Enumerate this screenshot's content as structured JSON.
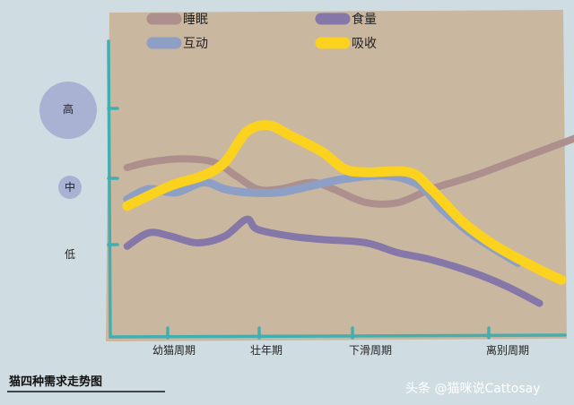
{
  "chart_data": {
    "type": "line",
    "title": "猫四种需求走势图",
    "categories": [
      "幼猫周期",
      "壮年期",
      "下滑周期",
      "离别周期"
    ],
    "y_levels": [
      "低",
      "中",
      "高"
    ],
    "ylim": [
      0,
      3
    ],
    "xlim": [
      0,
      4
    ],
    "legend_position": "top",
    "grid": false,
    "series": [
      {
        "name": "睡眠",
        "color": "#ad8f8d",
        "points": [
          [
            -0.2,
            2.12
          ],
          [
            0.0,
            2.2
          ],
          [
            0.3,
            2.25
          ],
          [
            0.6,
            2.2
          ],
          [
            0.8,
            2.0
          ],
          [
            1.0,
            1.8
          ],
          [
            1.2,
            1.8
          ],
          [
            1.5,
            1.9
          ],
          [
            1.7,
            1.8
          ],
          [
            2.0,
            1.6
          ],
          [
            2.3,
            1.6
          ],
          [
            2.6,
            1.8
          ],
          [
            3.0,
            2.0
          ],
          [
            3.5,
            2.3
          ],
          [
            4.0,
            2.6
          ]
        ]
      },
      {
        "name": "食量",
        "color": "#8577a8",
        "points": [
          [
            -0.2,
            0.95
          ],
          [
            0.0,
            1.15
          ],
          [
            0.2,
            1.1
          ],
          [
            0.45,
            1.0
          ],
          [
            0.7,
            1.1
          ],
          [
            0.9,
            1.35
          ],
          [
            1.0,
            1.2
          ],
          [
            1.3,
            1.1
          ],
          [
            1.6,
            1.05
          ],
          [
            2.0,
            1.0
          ],
          [
            2.3,
            0.85
          ],
          [
            2.6,
            0.75
          ],
          [
            3.0,
            0.55
          ],
          [
            3.3,
            0.35
          ],
          [
            3.6,
            0.1
          ]
        ]
      },
      {
        "name": "互动",
        "color": "#8e9fc5",
        "points": [
          [
            -0.2,
            1.65
          ],
          [
            0.0,
            1.8
          ],
          [
            0.25,
            1.75
          ],
          [
            0.5,
            1.9
          ],
          [
            0.7,
            1.8
          ],
          [
            0.9,
            1.75
          ],
          [
            1.2,
            1.75
          ],
          [
            1.5,
            1.85
          ],
          [
            1.8,
            1.95
          ],
          [
            2.2,
            2.0
          ],
          [
            2.5,
            1.85
          ],
          [
            2.7,
            1.5
          ],
          [
            3.0,
            1.1
          ],
          [
            3.4,
            0.7
          ]
        ]
      },
      {
        "name": "吸收",
        "color": "#fbd21e",
        "points": [
          [
            -0.2,
            1.55
          ],
          [
            0.2,
            1.85
          ],
          [
            0.5,
            2.0
          ],
          [
            0.7,
            2.2
          ],
          [
            0.9,
            2.65
          ],
          [
            1.1,
            2.75
          ],
          [
            1.3,
            2.6
          ],
          [
            1.6,
            2.35
          ],
          [
            1.8,
            2.1
          ],
          [
            2.0,
            2.05
          ],
          [
            2.4,
            2.05
          ],
          [
            2.6,
            1.8
          ],
          [
            2.9,
            1.3
          ],
          [
            3.2,
            0.95
          ],
          [
            3.6,
            0.6
          ],
          [
            3.8,
            0.45
          ]
        ]
      }
    ]
  },
  "credit": "头条 @猫咪说Cattosay",
  "colors": {
    "background": "#cfdde3",
    "plot_area": "#cab7a0",
    "axis": "#43aeb0",
    "level_circle": "#a9b2d3"
  }
}
